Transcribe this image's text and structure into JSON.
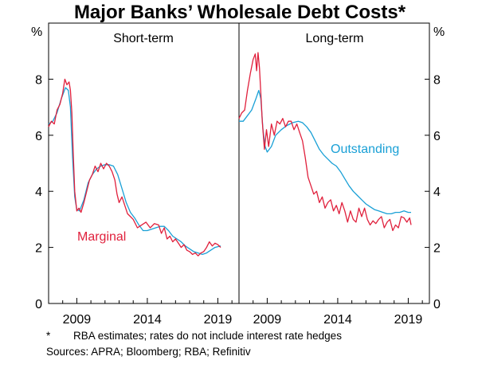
{
  "chart_data": {
    "type": "line",
    "title": "Major Banks’ Wholesale Debt Costs*",
    "yunit_left": "%",
    "yunit_right": "%",
    "ylim": [
      0,
      10
    ],
    "yticks": [
      0,
      2,
      4,
      6,
      8
    ],
    "xlim": [
      2007.0,
      2020.5
    ],
    "xticks": [
      {
        "value": 2009.0,
        "label": "2009"
      },
      {
        "value": 2014.0,
        "label": "2014"
      },
      {
        "value": 2019.0,
        "label": "2019"
      }
    ],
    "colors": {
      "marginal": "#e0203c",
      "outstanding": "#1aa0d6",
      "axis": "#000000"
    },
    "panels": [
      {
        "name": "short-term",
        "title": "Short-term",
        "series": [
          {
            "name": "Outstanding",
            "key": "outstanding",
            "show_label": false,
            "x": [
              2007.0,
              2007.3,
              2007.6,
              2007.9,
              2008.2,
              2008.4,
              2008.55,
              2008.7,
              2008.85,
              2009.0,
              2009.2,
              2009.5,
              2009.8,
              2010.1,
              2010.4,
              2010.7,
              2011.0,
              2011.3,
              2011.6,
              2011.9,
              2012.2,
              2012.5,
              2012.8,
              2013.1,
              2013.4,
              2013.7,
              2014.0,
              2014.3,
              2014.6,
              2014.9,
              2015.2,
              2015.5,
              2015.8,
              2016.1,
              2016.4,
              2016.7,
              2017.0,
              2017.3,
              2017.6,
              2017.9,
              2018.2,
              2018.5,
              2018.8,
              2019.2
            ],
            "y": [
              6.4,
              6.5,
              6.8,
              7.3,
              7.7,
              7.6,
              7.0,
              5.2,
              3.8,
              3.35,
              3.3,
              3.7,
              4.3,
              4.6,
              4.8,
              4.9,
              4.95,
              4.95,
              4.9,
              4.6,
              4.1,
              3.6,
              3.25,
              3.05,
              2.8,
              2.6,
              2.6,
              2.65,
              2.7,
              2.75,
              2.75,
              2.6,
              2.4,
              2.3,
              2.2,
              2.05,
              1.95,
              1.85,
              1.8,
              1.75,
              1.8,
              1.9,
              2.0,
              2.05
            ]
          },
          {
            "name": "Marginal",
            "key": "marginal",
            "show_label": true,
            "x": [
              2007.0,
              2007.2,
              2007.4,
              2007.6,
              2007.8,
              2008.0,
              2008.15,
              2008.3,
              2008.45,
              2008.55,
              2008.65,
              2008.75,
              2008.85,
              2009.0,
              2009.15,
              2009.3,
              2009.5,
              2009.7,
              2009.9,
              2010.1,
              2010.3,
              2010.5,
              2010.7,
              2010.9,
              2011.1,
              2011.3,
              2011.5,
              2011.7,
              2011.85,
              2012.0,
              2012.2,
              2012.4,
              2012.6,
              2012.8,
              2013.0,
              2013.3,
              2013.6,
              2013.9,
              2014.2,
              2014.5,
              2014.8,
              2015.0,
              2015.2,
              2015.4,
              2015.6,
              2015.8,
              2016.0,
              2016.2,
              2016.4,
              2016.6,
              2016.8,
              2017.0,
              2017.2,
              2017.4,
              2017.6,
              2017.8,
              2018.0,
              2018.2,
              2018.4,
              2018.6,
              2018.8,
              2019.0,
              2019.2
            ],
            "y": [
              6.3,
              6.5,
              6.4,
              6.9,
              7.1,
              7.5,
              8.0,
              7.8,
              7.9,
              7.6,
              6.8,
              5.3,
              4.0,
              3.3,
              3.4,
              3.25,
              3.6,
              4.0,
              4.4,
              4.6,
              4.9,
              4.7,
              5.0,
              4.8,
              5.0,
              4.9,
              4.7,
              4.4,
              3.9,
              3.6,
              3.8,
              3.5,
              3.2,
              3.1,
              3.0,
              2.7,
              2.8,
              2.9,
              2.7,
              2.85,
              2.8,
              2.5,
              2.7,
              2.3,
              2.4,
              2.2,
              2.3,
              2.15,
              2.0,
              2.1,
              1.9,
              1.85,
              1.75,
              1.8,
              1.7,
              1.8,
              1.85,
              2.0,
              2.2,
              2.05,
              2.15,
              2.1,
              2.0
            ]
          }
        ],
        "label_text": "Marginal"
      },
      {
        "name": "long-term",
        "title": "Long-term",
        "series": [
          {
            "name": "Outstanding",
            "key": "outstanding",
            "show_label": true,
            "x": [
              2007.0,
              2007.3,
              2007.6,
              2007.9,
              2008.2,
              2008.4,
              2008.55,
              2008.7,
              2008.85,
              2009.0,
              2009.3,
              2009.6,
              2010.0,
              2010.4,
              2010.8,
              2011.2,
              2011.5,
              2011.8,
              2012.1,
              2012.4,
              2012.7,
              2013.0,
              2013.3,
              2013.6,
              2013.9,
              2014.2,
              2014.5,
              2014.8,
              2015.1,
              2015.4,
              2015.7,
              2016.0,
              2016.3,
              2016.6,
              2016.9,
              2017.2,
              2017.5,
              2017.8,
              2018.1,
              2018.4,
              2018.7,
              2019.0,
              2019.2
            ],
            "y": [
              6.5,
              6.5,
              6.7,
              6.9,
              7.3,
              7.6,
              7.3,
              6.2,
              5.6,
              5.4,
              5.6,
              6.0,
              6.2,
              6.35,
              6.45,
              6.5,
              6.45,
              6.3,
              6.1,
              5.8,
              5.5,
              5.3,
              5.15,
              5.0,
              4.9,
              4.7,
              4.45,
              4.2,
              4.0,
              3.85,
              3.7,
              3.55,
              3.45,
              3.35,
              3.3,
              3.25,
              3.2,
              3.2,
              3.25,
              3.25,
              3.3,
              3.25,
              3.25
            ]
          },
          {
            "name": "Marginal",
            "key": "marginal",
            "show_label": false,
            "x": [
              2007.0,
              2007.2,
              2007.4,
              2007.6,
              2007.8,
              2008.0,
              2008.15,
              2008.25,
              2008.35,
              2008.45,
              2008.55,
              2008.65,
              2008.8,
              2008.95,
              2009.1,
              2009.3,
              2009.5,
              2009.7,
              2009.9,
              2010.1,
              2010.3,
              2010.5,
              2010.7,
              2010.9,
              2011.1,
              2011.3,
              2011.5,
              2011.7,
              2011.9,
              2012.1,
              2012.3,
              2012.5,
              2012.7,
              2012.9,
              2013.1,
              2013.3,
              2013.5,
              2013.7,
              2013.9,
              2014.1,
              2014.3,
              2014.5,
              2014.7,
              2014.9,
              2015.1,
              2015.3,
              2015.5,
              2015.7,
              2015.9,
              2016.1,
              2016.3,
              2016.5,
              2016.7,
              2016.9,
              2017.1,
              2017.3,
              2017.5,
              2017.7,
              2017.9,
              2018.1,
              2018.3,
              2018.5,
              2018.7,
              2018.9,
              2019.1,
              2019.2
            ],
            "y": [
              6.6,
              6.8,
              6.9,
              7.6,
              8.2,
              8.7,
              8.9,
              8.3,
              8.95,
              8.4,
              7.5,
              6.5,
              5.5,
              6.2,
              5.6,
              6.4,
              6.0,
              6.5,
              6.4,
              6.6,
              6.3,
              6.5,
              6.5,
              6.2,
              6.4,
              6.1,
              5.8,
              5.2,
              4.5,
              4.2,
              3.9,
              4.0,
              3.6,
              3.8,
              3.4,
              3.6,
              3.7,
              3.3,
              3.5,
              3.2,
              3.6,
              3.3,
              2.9,
              3.3,
              3.0,
              2.9,
              3.4,
              3.1,
              3.4,
              3.0,
              2.8,
              2.95,
              2.85,
              3.0,
              3.1,
              2.7,
              2.9,
              3.0,
              2.6,
              2.8,
              2.7,
              3.1,
              3.05,
              2.9,
              3.05,
              2.8
            ]
          }
        ],
        "label_text": "Outstanding"
      }
    ]
  },
  "footnotes": {
    "asterisk": "*",
    "note": "RBA estimates; rates do not include interest rate hedges",
    "sources": "Sources:   APRA; Bloomberg; RBA; Refinitiv"
  }
}
